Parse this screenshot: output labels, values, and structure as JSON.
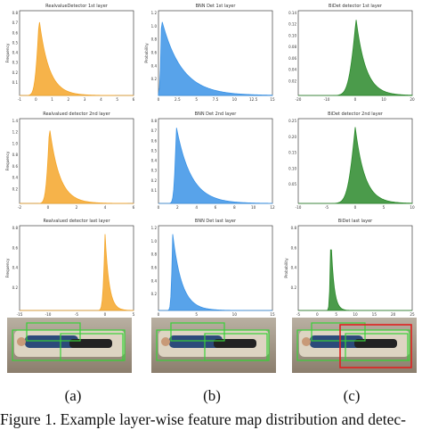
{
  "colors": {
    "orange": "#f4a62a",
    "blue": "#3b93e6",
    "green": "#2b8a2b",
    "detection_box_green": "#38d038",
    "detection_box_red": "#e02020"
  },
  "chart_data": [
    {
      "type": "area",
      "title": "RealvalueDetector 1st layer",
      "color": "orange",
      "ylabel": "Frequency",
      "xlim": [
        -1,
        6
      ],
      "peak_x": 0.2,
      "spread_left": 0.25,
      "spread_right": 0.6,
      "x_ticks": [
        "-1",
        "0",
        "1",
        "2",
        "3",
        "4",
        "5",
        "6"
      ],
      "y_ticks": [
        "0.8",
        "0.7",
        "0.6",
        "0.5",
        "0.4",
        "0.3",
        "0.2",
        "0.1"
      ]
    },
    {
      "type": "area",
      "title": "BNN Det 1st layer",
      "color": "blue",
      "ylabel": "Probability",
      "xlim": [
        0,
        15
      ],
      "peak_x": 0.4,
      "spread_left": 0.2,
      "spread_right": 2.6,
      "x_ticks": [
        "0",
        "2.5",
        "5",
        "7.5",
        "10",
        "12.5",
        "15"
      ],
      "y_ticks": [
        "1.2",
        "1.0",
        "0.8",
        "0.6",
        "0.4",
        "0.2"
      ]
    },
    {
      "type": "area",
      "title": "BiDet detector 1st layer",
      "color": "green",
      "ylabel": "",
      "xlim": [
        -20,
        20
      ],
      "peak_x": 0.3,
      "spread_left": 2.6,
      "spread_right": 3.4,
      "x_ticks": [
        "-20",
        "-10",
        "0",
        "10",
        "20"
      ],
      "y_ticks": [
        "0.14",
        "0.12",
        "0.10",
        "0.08",
        "0.06",
        "0.04",
        "0.02"
      ]
    },
    {
      "type": "area",
      "title": "Realvalued detector 2nd layer",
      "color": "orange",
      "ylabel": "Frequency",
      "xlim": [
        -2,
        6
      ],
      "peak_x": 0.1,
      "spread_left": 0.25,
      "spread_right": 0.7,
      "x_ticks": [
        "-2",
        "0",
        "2",
        "4",
        "6"
      ],
      "y_ticks": [
        "1.4",
        "1.2",
        "1.0",
        "0.8",
        "0.6",
        "0.4",
        "0.2"
      ]
    },
    {
      "type": "area",
      "title": "BNN Det 2nd layer",
      "color": "blue",
      "ylabel": "",
      "xlim": [
        -2,
        12
      ],
      "peak_x": 0.2,
      "spread_left": 0.3,
      "spread_right": 1.8,
      "x_ticks": [
        "0",
        "2",
        "4",
        "6",
        "8",
        "10",
        "12"
      ],
      "y_ticks": [
        "0.8",
        "0.7",
        "0.6",
        "0.5",
        "0.4",
        "0.3",
        "0.2",
        "0.1"
      ]
    },
    {
      "type": "area",
      "title": "BiDet detector 2nd layer",
      "color": "green",
      "ylabel": "",
      "xlim": [
        -12,
        12
      ],
      "peak_x": 0.0,
      "spread_left": 1.6,
      "spread_right": 2.0,
      "x_ticks": [
        "-10",
        "-5",
        "0",
        "5",
        "10"
      ],
      "y_ticks": [
        "0.25",
        "0.20",
        "0.15",
        "0.10",
        "0.05"
      ]
    },
    {
      "type": "area",
      "title": "Realvalued detector last layer",
      "color": "orange",
      "ylabel": "Frequency",
      "xlim": [
        -15,
        5
      ],
      "peak_x": 0.0,
      "spread_left": 0.4,
      "spread_right": 0.7,
      "x_ticks": [
        "-15",
        "-10",
        "-5",
        "0",
        "5"
      ],
      "y_ticks": [
        "0.8",
        "0.6",
        "0.4",
        "0.2"
      ]
    },
    {
      "type": "area",
      "title": "BNN Det last layer",
      "color": "blue",
      "ylabel": "",
      "xlim": [
        -2,
        18
      ],
      "peak_x": 0.5,
      "spread_left": 0.3,
      "spread_right": 1.6,
      "x_ticks": [
        "0",
        "5",
        "10",
        "15"
      ],
      "y_ticks": [
        "1.2",
        "1.0",
        "0.8",
        "0.6",
        "0.4",
        "0.2"
      ]
    },
    {
      "type": "area",
      "title": "BiDet last layer",
      "color": "green",
      "ylabel": "Probability",
      "xlim": [
        -10,
        25
      ],
      "peak_x": 0.0,
      "spread_left": 0.4,
      "spread_right": 0.9,
      "x_ticks": [
        "-5",
        "0",
        "5",
        "10",
        "15",
        "20",
        "25"
      ],
      "y_ticks": [
        "0.8",
        "0.6",
        "0.4",
        "0.2"
      ]
    }
  ],
  "subfigure_labels": [
    "(a)",
    "(b)",
    "(c)"
  ],
  "caption": "Figure 1. Example layer-wise feature map distribution and detec-"
}
